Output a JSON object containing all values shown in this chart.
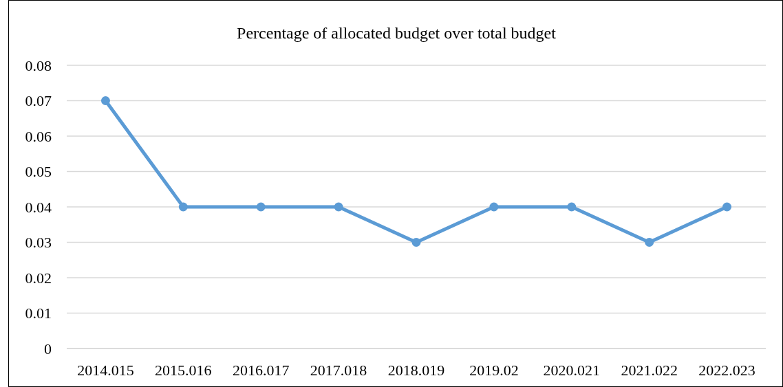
{
  "chart_data": {
    "type": "line",
    "title": "Percentage of allocated budget over total budget",
    "categories": [
      "2014.015",
      "2015.016",
      "2016.017",
      "2017.018",
      "2018.019",
      "2019.02",
      "2020.021",
      "2021.022",
      "2022.023"
    ],
    "series": [
      {
        "color": "#5b9bd5",
        "values": [
          0.07,
          0.04,
          0.04,
          0.04,
          0.03,
          0.04,
          0.04,
          0.03,
          0.04
        ]
      }
    ],
    "ylim": [
      0,
      0.08
    ],
    "yticks": [
      0,
      0.01,
      0.02,
      0.03,
      0.04,
      0.05,
      0.06,
      0.07,
      0.08
    ],
    "grid": "y",
    "marker": "circle",
    "line_style": "solid"
  }
}
